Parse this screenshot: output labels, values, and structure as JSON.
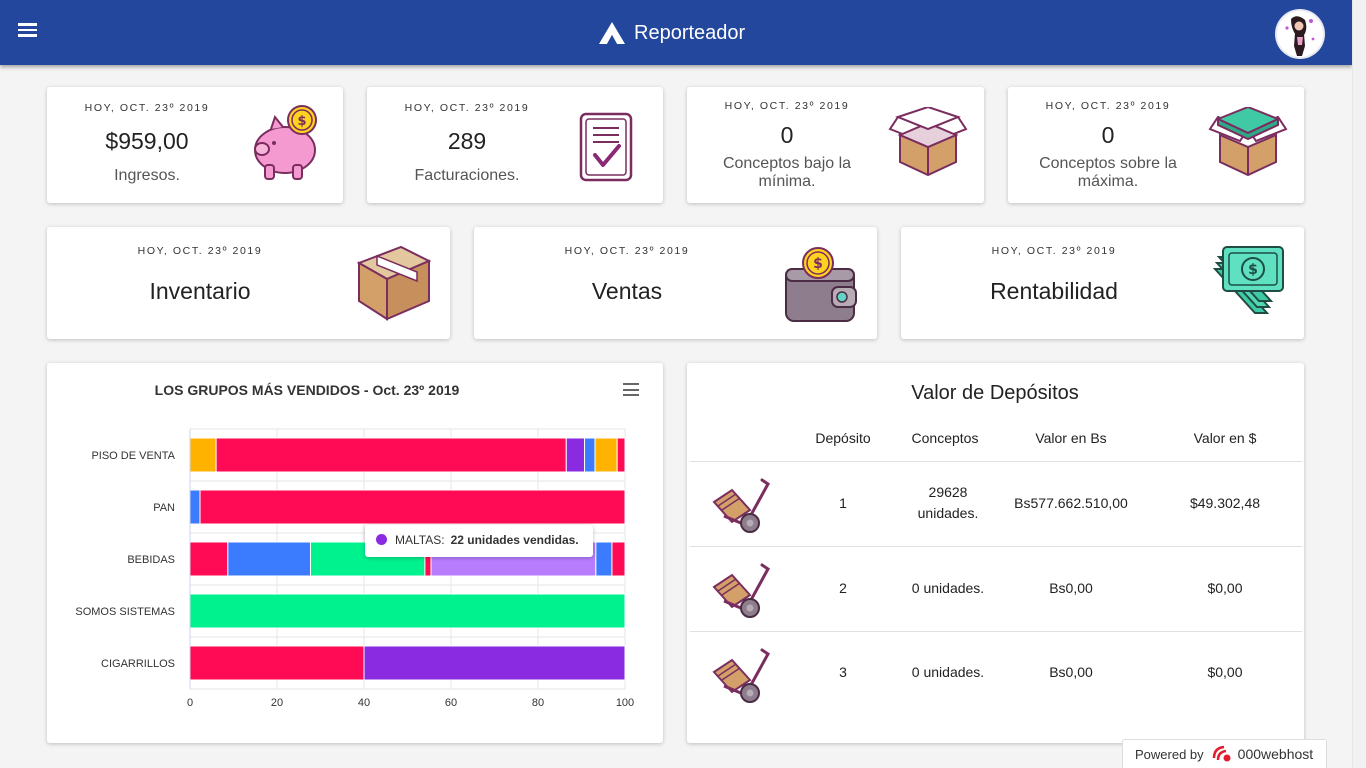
{
  "app": {
    "title": "Reporteador"
  },
  "stats_row1": [
    {
      "date": "HOY, OCT. 23º 2019",
      "value": "$959,00",
      "label": "Ingresos.",
      "icon": "piggy-bank-icon"
    },
    {
      "date": "HOY, OCT. 23º 2019",
      "value": "289",
      "label": "Facturaciones.",
      "icon": "checklist-icon"
    },
    {
      "date": "HOY, OCT. 23º 2019",
      "value": "0",
      "label": "Conceptos bajo la mínima.",
      "icon": "open-box-empty-icon"
    },
    {
      "date": "HOY, OCT. 23º 2019",
      "value": "0",
      "label": "Conceptos sobre la máxima.",
      "icon": "open-box-full-icon"
    }
  ],
  "stats_row2": [
    {
      "date": "HOY, OCT. 23º 2019",
      "title": "Inventario",
      "icon": "closed-box-icon"
    },
    {
      "date": "HOY, OCT. 23º 2019",
      "title": "Ventas",
      "icon": "wallet-coin-icon"
    },
    {
      "date": "HOY, OCT. 23º 2019",
      "title": "Rentabilidad",
      "icon": "money-stack-icon"
    }
  ],
  "chart_data": {
    "type": "bar",
    "orientation": "horizontal",
    "stacked": "percent",
    "title": "LOS GRUPOS MÁS VENDIDOS - Oct. 23º 2019",
    "categories": [
      "PISO DE VENTA",
      "PAN",
      "BEBIDAS",
      "SOMOS SISTEMAS",
      "CIGARRILLOS"
    ],
    "xlim": [
      0,
      100
    ],
    "xticks": [
      "0",
      "20",
      "40",
      "60",
      "80",
      "100"
    ],
    "grid": true,
    "segments": [
      [
        {
          "color": "#ffb300",
          "value": 6
        },
        {
          "color": "#ff0a54",
          "value": 80.5
        },
        {
          "color": "#8a2be2",
          "value": 4.2
        },
        {
          "color": "#3b7cff",
          "value": 2.4
        },
        {
          "color": "#ffb300",
          "value": 5.1
        },
        {
          "color": "#ff0a54",
          "value": 1.8
        }
      ],
      [
        {
          "color": "#3b7cff",
          "value": 2.3
        },
        {
          "color": "#ff0a54",
          "value": 97.7
        }
      ],
      [
        {
          "color": "#ff0a54",
          "value": 8.7
        },
        {
          "color": "#3b7cff",
          "value": 19
        },
        {
          "color": "#00f28f",
          "value": 26.3
        },
        {
          "color": "#ff0a54",
          "value": 1.4
        },
        {
          "color": "#b87dff",
          "value": 37.9
        },
        {
          "color": "#3b7cff",
          "value": 3.7
        },
        {
          "color": "#ff0a54",
          "value": 3
        }
      ],
      [
        {
          "color": "#00f28f",
          "value": 100
        }
      ],
      [
        {
          "color": "#ff0a54",
          "value": 40
        },
        {
          "color": "#8a2be2",
          "value": 60
        }
      ]
    ],
    "tooltip": {
      "label": "MALTAS:",
      "value": "22 unidades vendidas.",
      "color": "#8a2be2"
    }
  },
  "deposits": {
    "title": "Valor de Depósitos",
    "headers": [
      "Depósito",
      "Conceptos",
      "Valor en Bs",
      "Valor en $"
    ],
    "rows": [
      {
        "icon": "hand-truck-icon",
        "deposito": "1",
        "conceptos": "29628 unidades.",
        "bs": "Bs577.662.510,00",
        "usd": "$49.302,48"
      },
      {
        "icon": "hand-truck-icon",
        "deposito": "2",
        "conceptos": "0 unidades.",
        "bs": "Bs0,00",
        "usd": "$0,00"
      },
      {
        "icon": "hand-truck-icon",
        "deposito": "3",
        "conceptos": "0 unidades.",
        "bs": "Bs0,00",
        "usd": "$0,00"
      }
    ]
  },
  "footer": {
    "powered_label": "Powered by",
    "powered_brand": "000webhost"
  }
}
